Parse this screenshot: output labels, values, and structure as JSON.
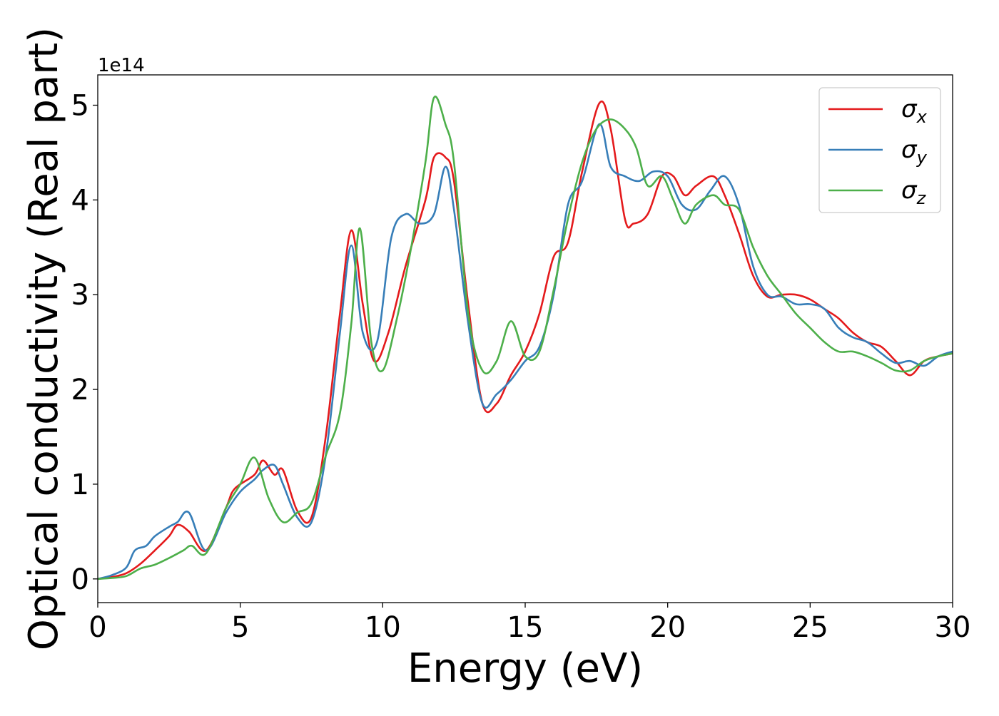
{
  "chart_data": {
    "type": "line",
    "xlabel": "Energy (eV)",
    "ylabel": "Optical conductivity (Real part)",
    "y_offset_label": "1e14",
    "y_scale": 100000000000000.0,
    "xlim": [
      0,
      30
    ],
    "ylim": [
      -0.25,
      5.32
    ],
    "xticks": [
      0,
      5,
      10,
      15,
      20,
      25,
      30
    ],
    "yticks": [
      0,
      1,
      2,
      3,
      4,
      5
    ],
    "grid": false,
    "legend_position": "top-right",
    "series": [
      {
        "name": "σx",
        "symbol": "σ",
        "subscript": "x",
        "color": "#e41a1c",
        "x": [
          0,
          0.5,
          1.0,
          1.5,
          2.0,
          2.5,
          2.8,
          3.2,
          3.8,
          4.5,
          4.8,
          5.5,
          5.8,
          6.2,
          6.5,
          7.0,
          7.5,
          8.0,
          8.5,
          8.9,
          9.3,
          9.7,
          10.2,
          10.8,
          11.5,
          11.8,
          12.2,
          12.5,
          13.0,
          13.5,
          14.0,
          14.5,
          15.0,
          15.5,
          16.0,
          16.5,
          17.0,
          17.6,
          18.0,
          18.5,
          18.8,
          19.3,
          19.8,
          20.2,
          20.6,
          21.0,
          21.6,
          22.0,
          22.5,
          23.0,
          23.5,
          24.0,
          24.5,
          25.0,
          25.5,
          26.0,
          26.5,
          27.0,
          27.5,
          28.0,
          28.5,
          29.0,
          29.5,
          30.0
        ],
        "y": [
          0.0,
          0.02,
          0.06,
          0.16,
          0.3,
          0.45,
          0.57,
          0.5,
          0.3,
          0.75,
          0.95,
          1.1,
          1.25,
          1.1,
          1.15,
          0.72,
          0.65,
          1.5,
          2.8,
          3.68,
          2.9,
          2.3,
          2.6,
          3.3,
          4.0,
          4.45,
          4.45,
          4.2,
          2.9,
          1.85,
          1.85,
          2.15,
          2.4,
          2.8,
          3.4,
          3.55,
          4.3,
          5.02,
          4.75,
          3.8,
          3.75,
          3.85,
          4.25,
          4.25,
          4.05,
          4.15,
          4.25,
          4.05,
          3.65,
          3.2,
          2.98,
          3.0,
          3.0,
          2.95,
          2.85,
          2.75,
          2.6,
          2.5,
          2.45,
          2.3,
          2.15,
          2.3,
          2.35,
          2.38
        ]
      },
      {
        "name": "σy",
        "symbol": "σ",
        "subscript": "y",
        "color": "#377eb8",
        "x": [
          0,
          0.5,
          1.0,
          1.3,
          1.7,
          2.0,
          2.5,
          2.8,
          3.2,
          3.8,
          4.5,
          5.0,
          5.5,
          5.8,
          6.2,
          6.5,
          7.0,
          7.5,
          8.0,
          8.5,
          8.9,
          9.3,
          9.8,
          10.3,
          10.8,
          11.3,
          11.8,
          12.2,
          12.5,
          13.0,
          13.5,
          14.0,
          14.5,
          15.0,
          15.5,
          16.0,
          16.5,
          17.0,
          17.6,
          18.0,
          18.5,
          19.0,
          19.5,
          20.0,
          20.5,
          21.0,
          21.5,
          22.0,
          22.5,
          23.0,
          23.5,
          24.0,
          24.5,
          25.0,
          25.5,
          26.0,
          26.5,
          27.0,
          27.5,
          28.0,
          28.5,
          29.0,
          29.5,
          30.0
        ],
        "y": [
          0.0,
          0.04,
          0.12,
          0.3,
          0.35,
          0.45,
          0.55,
          0.6,
          0.7,
          0.3,
          0.7,
          0.92,
          1.05,
          1.15,
          1.2,
          1.0,
          0.65,
          0.6,
          1.3,
          2.6,
          3.52,
          2.6,
          2.5,
          3.6,
          3.85,
          3.75,
          3.85,
          4.35,
          3.9,
          2.7,
          1.85,
          1.95,
          2.1,
          2.3,
          2.45,
          3.0,
          3.95,
          4.2,
          4.8,
          4.35,
          4.25,
          4.2,
          4.3,
          4.25,
          3.95,
          3.9,
          4.1,
          4.25,
          3.95,
          3.3,
          3.0,
          2.98,
          2.9,
          2.9,
          2.85,
          2.65,
          2.55,
          2.5,
          2.38,
          2.28,
          2.3,
          2.25,
          2.35,
          2.4
        ]
      },
      {
        "name": "σz",
        "symbol": "σ",
        "subscript": "z",
        "color": "#4daf4a",
        "x": [
          0,
          0.5,
          1.0,
          1.5,
          2.0,
          2.5,
          3.0,
          3.3,
          3.8,
          4.5,
          5.0,
          5.5,
          6.0,
          6.5,
          7.0,
          7.5,
          8.0,
          8.5,
          8.9,
          9.2,
          9.6,
          10.0,
          10.5,
          11.0,
          11.5,
          11.8,
          12.2,
          12.5,
          13.0,
          13.5,
          14.0,
          14.5,
          15.0,
          15.5,
          16.0,
          16.5,
          17.0,
          17.5,
          18.0,
          18.5,
          18.9,
          19.3,
          19.8,
          20.2,
          20.6,
          21.0,
          21.6,
          22.0,
          22.5,
          23.0,
          23.5,
          24.0,
          24.5,
          25.0,
          25.5,
          26.0,
          26.5,
          27.0,
          27.5,
          28.0,
          28.5,
          29.0,
          29.5,
          30.0
        ],
        "y": [
          0.0,
          0.01,
          0.03,
          0.11,
          0.15,
          0.22,
          0.3,
          0.35,
          0.27,
          0.75,
          1.0,
          1.28,
          0.85,
          0.6,
          0.7,
          0.8,
          1.3,
          1.75,
          2.7,
          3.7,
          2.5,
          2.2,
          2.75,
          3.5,
          4.4,
          5.08,
          4.8,
          4.4,
          2.8,
          2.2,
          2.3,
          2.72,
          2.35,
          2.4,
          3.05,
          3.8,
          4.4,
          4.75,
          4.85,
          4.75,
          4.55,
          4.15,
          4.25,
          4.0,
          3.75,
          3.95,
          4.05,
          3.95,
          3.9,
          3.5,
          3.2,
          3.0,
          2.8,
          2.65,
          2.5,
          2.4,
          2.4,
          2.35,
          2.28,
          2.2,
          2.2,
          2.3,
          2.35,
          2.38
        ]
      }
    ]
  }
}
